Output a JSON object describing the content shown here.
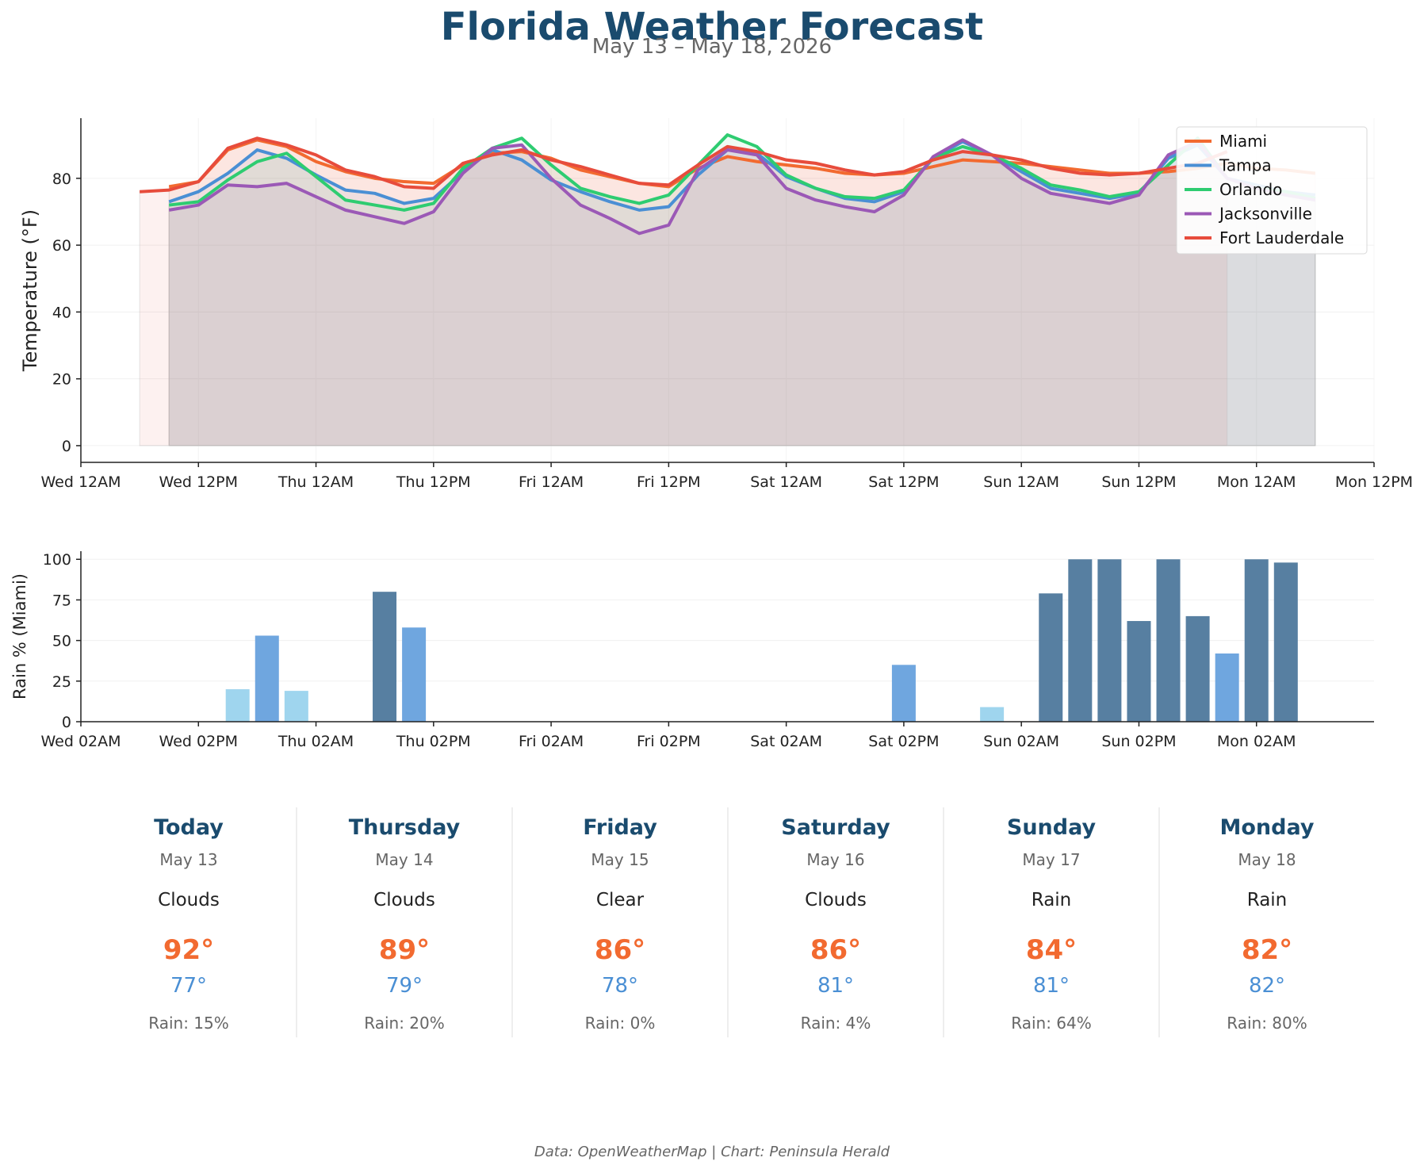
{
  "header": {
    "title": "Florida Weather Forecast",
    "subtitle": "May 13 – May 18, 2026"
  },
  "footer": "Data: OpenWeatherMap | Chart: Peninsula Herald",
  "colors": {
    "Miami": "#f26a30",
    "Tampa": "#4a8fd4",
    "Orlando": "#2ecc71",
    "Jacksonville": "#9b59b6",
    "Fort Lauderdale": "#e74c3c",
    "rain_light": "#9fd5ee",
    "rain_mid": "#6fa6df",
    "rain_dark": "#577fa1"
  },
  "chart_data": [
    {
      "type": "line",
      "xlabel": "",
      "ylabel": "Temperature (°F)",
      "x_unit": "hours since Wed 12AM",
      "xlim": [
        0,
        132
      ],
      "ylim": [
        -5,
        98
      ],
      "yticks": [
        0,
        20,
        40,
        60,
        80
      ],
      "xticks": [
        {
          "x": 0,
          "label": "Wed 12AM"
        },
        {
          "x": 12,
          "label": "Wed 12PM"
        },
        {
          "x": 24,
          "label": "Thu 12AM"
        },
        {
          "x": 36,
          "label": "Thu 12PM"
        },
        {
          "x": 48,
          "label": "Fri 12AM"
        },
        {
          "x": 60,
          "label": "Fri 12PM"
        },
        {
          "x": 72,
          "label": "Sat 12AM"
        },
        {
          "x": 84,
          "label": "Sat 12PM"
        },
        {
          "x": 96,
          "label": "Sun 12AM"
        },
        {
          "x": 108,
          "label": "Sun 12PM"
        },
        {
          "x": 120,
          "label": "Mon 12AM"
        },
        {
          "x": 132,
          "label": "Mon 12PM"
        }
      ],
      "grid": true,
      "legend": "top-right",
      "series": [
        {
          "name": "Miami",
          "x": [
            9,
            12,
            15,
            18,
            21,
            24,
            27,
            30,
            33,
            36,
            39,
            42,
            45,
            48,
            51,
            54,
            57,
            60,
            63,
            66,
            69,
            72,
            75,
            78,
            81,
            84,
            87,
            90,
            93,
            96,
            99,
            102,
            105,
            108,
            111,
            114,
            117,
            120,
            123,
            126
          ],
          "values": [
            77.5,
            79,
            88.5,
            91.5,
            89.5,
            85,
            82,
            80,
            79,
            78.5,
            84,
            87.5,
            88,
            86,
            82.5,
            80.5,
            78.5,
            77.5,
            83,
            86.5,
            85,
            84,
            83,
            81.5,
            81,
            81.5,
            83.5,
            85.5,
            85,
            84.5,
            83.5,
            82.5,
            81.5,
            81.5,
            82,
            83,
            84.5,
            83,
            82.5,
            81.5
          ]
        },
        {
          "name": "Tampa",
          "x": [
            9,
            12,
            15,
            18,
            21,
            24,
            27,
            30,
            33,
            36,
            39,
            42,
            45,
            48,
            51,
            54,
            57,
            60,
            63,
            66,
            69,
            72,
            75,
            78,
            81,
            84,
            87,
            90,
            93,
            96,
            99,
            102,
            105,
            108,
            111,
            114,
            117,
            120,
            123,
            126
          ],
          "values": [
            73,
            76,
            81.5,
            88.5,
            86,
            81,
            76.5,
            75.5,
            72.5,
            74,
            82,
            88.5,
            85.5,
            79.5,
            76,
            73,
            70.5,
            71.5,
            81,
            88.5,
            87.5,
            80.5,
            77,
            74,
            73,
            76,
            86,
            91,
            87,
            82,
            77,
            75.5,
            74,
            75.5,
            86,
            90,
            80,
            78,
            76,
            75
          ]
        },
        {
          "name": "Orlando",
          "x": [
            9,
            12,
            15,
            18,
            21,
            24,
            27,
            30,
            33,
            36,
            39,
            42,
            45,
            48,
            51,
            54,
            57,
            60,
            63,
            66,
            69,
            72,
            75,
            78,
            81,
            84,
            87,
            90,
            93,
            96,
            99,
            102,
            105,
            108,
            111,
            114,
            117,
            120,
            123,
            126
          ],
          "values": [
            72,
            73,
            79.5,
            85,
            87.5,
            80.5,
            73.5,
            72,
            70.5,
            72.5,
            83,
            89,
            92,
            84,
            77,
            74.5,
            72.5,
            75,
            84,
            93,
            89.5,
            81,
            77,
            74.5,
            74,
            76.5,
            86,
            89.5,
            87,
            83,
            78,
            76.5,
            74.5,
            76,
            84,
            92,
            80,
            77,
            76,
            74
          ]
        },
        {
          "name": "Jacksonville",
          "x": [
            9,
            12,
            15,
            18,
            21,
            24,
            27,
            30,
            33,
            36,
            39,
            42,
            45,
            48,
            51,
            54,
            57,
            60,
            63,
            66,
            69,
            72,
            75,
            78,
            81,
            84,
            87,
            90,
            93,
            96,
            99,
            102,
            105,
            108,
            111,
            114,
            117,
            120,
            123,
            126
          ],
          "values": [
            70.5,
            72,
            78,
            77.5,
            78.5,
            74.5,
            70.5,
            68.5,
            66.5,
            70,
            81.5,
            89,
            90,
            80,
            72,
            68,
            63.5,
            66,
            82.5,
            88.5,
            87,
            77,
            73.5,
            71.5,
            70,
            75,
            86.5,
            91.5,
            87,
            80,
            75.5,
            74,
            72.5,
            75,
            87,
            91,
            80,
            77,
            75,
            73.5
          ]
        },
        {
          "name": "Fort Lauderdale",
          "x": [
            6,
            9,
            12,
            15,
            18,
            21,
            24,
            27,
            30,
            33,
            36,
            39,
            42,
            45,
            48,
            51,
            54,
            57,
            60,
            63,
            66,
            69,
            72,
            75,
            78,
            81,
            84,
            87,
            90,
            93,
            96,
            99,
            102,
            105,
            108,
            111,
            114,
            117
          ],
          "values": [
            76,
            76.5,
            79,
            89,
            92,
            90,
            87,
            82.5,
            80.5,
            77.5,
            77,
            84.5,
            87,
            88.5,
            85.5,
            83.5,
            81,
            78.5,
            78,
            84,
            89.5,
            88,
            85.5,
            84.5,
            82.5,
            81,
            82,
            85.5,
            88,
            87,
            85.5,
            83,
            81.5,
            81,
            81.5,
            83,
            84.5,
            88
          ]
        }
      ]
    },
    {
      "type": "bar",
      "xlabel": "",
      "ylabel": "Rain % (Miami)",
      "x_unit": "hours since Wed 2AM",
      "xlim": [
        0,
        132
      ],
      "ylim": [
        0,
        105
      ],
      "yticks": [
        0,
        25,
        50,
        75,
        100
      ],
      "xticks": [
        {
          "x": 0,
          "label": "Wed 02AM"
        },
        {
          "x": 12,
          "label": "Wed 02PM"
        },
        {
          "x": 24,
          "label": "Thu 02AM"
        },
        {
          "x": 36,
          "label": "Thu 02PM"
        },
        {
          "x": 48,
          "label": "Fri 02AM"
        },
        {
          "x": 60,
          "label": "Fri 02PM"
        },
        {
          "x": 72,
          "label": "Sat 02AM"
        },
        {
          "x": 84,
          "label": "Sat 02PM"
        },
        {
          "x": 96,
          "label": "Sun 02AM"
        },
        {
          "x": 108,
          "label": "Sun 02PM"
        },
        {
          "x": 120,
          "label": "Mon 02AM"
        }
      ],
      "grid": true,
      "x": [
        16,
        19,
        22,
        31,
        34,
        84,
        93,
        99,
        102,
        105,
        108,
        111,
        114,
        117,
        120,
        123
      ],
      "values": [
        20,
        53,
        19,
        80,
        58,
        35,
        9,
        79,
        100,
        100,
        62,
        100,
        65,
        42,
        100,
        98
      ]
    }
  ],
  "forecast": [
    {
      "day": "Today",
      "date": "May 13",
      "condition": "Clouds",
      "high": "92°",
      "low": "77°",
      "rain": "Rain: 15%"
    },
    {
      "day": "Thursday",
      "date": "May 14",
      "condition": "Clouds",
      "high": "89°",
      "low": "79°",
      "rain": "Rain: 20%"
    },
    {
      "day": "Friday",
      "date": "May 15",
      "condition": "Clear",
      "high": "86°",
      "low": "78°",
      "rain": "Rain: 0%"
    },
    {
      "day": "Saturday",
      "date": "May 16",
      "condition": "Clouds",
      "high": "86°",
      "low": "81°",
      "rain": "Rain: 4%"
    },
    {
      "day": "Sunday",
      "date": "May 17",
      "condition": "Rain",
      "high": "84°",
      "low": "81°",
      "rain": "Rain: 64%"
    },
    {
      "day": "Monday",
      "date": "May 18",
      "condition": "Rain",
      "high": "82°",
      "low": "82°",
      "rain": "Rain: 80%"
    }
  ]
}
